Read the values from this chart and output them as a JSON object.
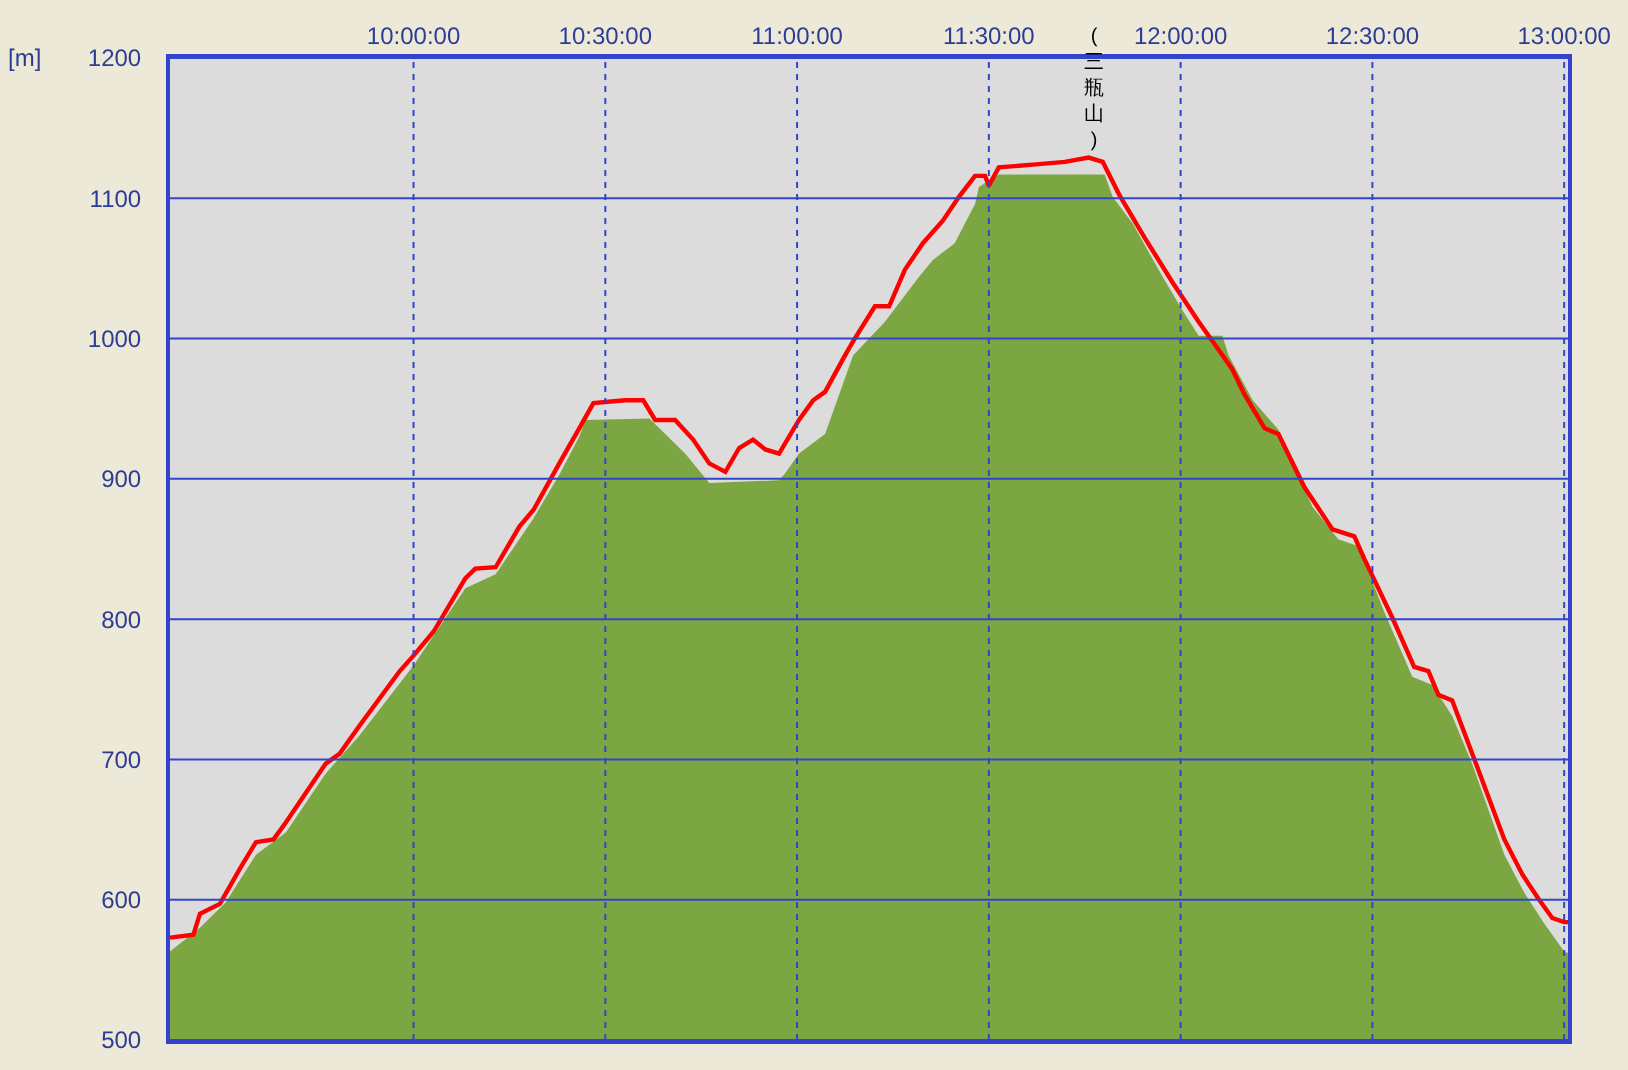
{
  "chart_data": {
    "type": "area",
    "ylabel": "[m]",
    "series": [
      {
        "color": "#7ba641",
        "x": [
          9.365,
          9.443,
          9.51,
          9.589,
          9.667,
          9.771,
          9.859,
          10.0,
          10.135,
          10.214,
          10.313,
          10.38,
          10.432,
          10.448,
          10.615,
          10.708,
          10.771,
          10.953,
          10.969,
          11.005,
          11.073,
          11.146,
          11.229,
          11.318,
          11.354,
          11.411,
          11.464,
          11.474,
          11.526,
          11.802,
          11.823,
          11.875,
          11.953,
          12.005,
          12.047,
          12.109,
          12.125,
          12.188,
          12.255,
          12.344,
          12.411,
          12.464,
          12.531,
          12.604,
          12.656,
          12.708,
          12.76,
          12.844,
          12.896,
          12.948,
          13.0,
          13.01
        ],
        "values": [
          563,
          580,
          598,
          632,
          648,
          690,
          717,
          767,
          822,
          832,
          872,
          903,
          930,
          942,
          943,
          918,
          897,
          899,
          904,
          918,
          932,
          988,
          1012,
          1044,
          1056,
          1068,
          1096,
          1108,
          1117,
          1117,
          1101,
          1082,
          1044,
          1020,
          1002,
          1002,
          988,
          956,
          935,
          880,
          857,
          852,
          805,
          759,
          753,
          731,
          697,
          632,
          605,
          583,
          563,
          562
        ]
      },
      {
        "type": "line",
        "color": "#ff0000",
        "x": [
          9.365,
          9.426,
          9.443,
          9.495,
          9.547,
          9.589,
          9.635,
          9.667,
          9.771,
          9.807,
          9.859,
          9.964,
          10.0,
          10.052,
          10.135,
          10.161,
          10.214,
          10.276,
          10.313,
          10.38,
          10.432,
          10.469,
          10.552,
          10.599,
          10.63,
          10.682,
          10.729,
          10.771,
          10.813,
          10.849,
          10.885,
          10.917,
          10.953,
          11.005,
          11.042,
          11.073,
          11.125,
          11.146,
          11.203,
          11.24,
          11.281,
          11.328,
          11.38,
          11.422,
          11.464,
          11.49,
          11.5,
          11.526,
          11.615,
          11.698,
          11.76,
          11.797,
          11.839,
          11.906,
          11.979,
          12.047,
          12.099,
          12.135,
          12.167,
          12.219,
          12.255,
          12.323,
          12.396,
          12.453,
          12.479,
          12.552,
          12.609,
          12.646,
          12.672,
          12.708,
          12.766,
          12.844,
          12.891,
          12.932,
          12.969,
          13.0,
          13.01
        ],
        "values": [
          573,
          575,
          590,
          597,
          622,
          641,
          643,
          655,
          697,
          704,
          724,
          763,
          774,
          791,
          829,
          836,
          837,
          866,
          878,
          911,
          936,
          954,
          956,
          956,
          942,
          942,
          928,
          911,
          905,
          922,
          928,
          921,
          918,
          942,
          956,
          962,
          988,
          998,
          1023,
          1023,
          1049,
          1068,
          1084,
          1101,
          1116,
          1116,
          1109,
          1122,
          1124,
          1126,
          1129,
          1126,
          1103,
          1072,
          1040,
          1012,
          992,
          978,
          960,
          936,
          932,
          894,
          864,
          859,
          843,
          801,
          766,
          763,
          746,
          742,
          700,
          643,
          618,
          601,
          587,
          584,
          584
        ]
      }
    ],
    "xlim": [
      9.365,
      13.01
    ],
    "xticks": [
      {
        "value": 10,
        "label": "10:00:00"
      },
      {
        "value": 10.5,
        "label": "10:30:00"
      },
      {
        "value": 11,
        "label": "11:00:00"
      },
      {
        "value": 11.5,
        "label": "11:30:00"
      },
      {
        "value": 12,
        "label": "12:00:00"
      },
      {
        "value": 12.5,
        "label": "12:30:00"
      },
      {
        "value": 13,
        "label": "13:00:00"
      }
    ],
    "ylim": [
      500,
      1200
    ],
    "yticks": [
      500,
      600,
      700,
      800,
      900,
      1000,
      1100,
      1200
    ],
    "grid": true,
    "annotations": [
      {
        "text": "(三瓶山)",
        "x": 11.776,
        "y": 1129
      }
    ]
  }
}
